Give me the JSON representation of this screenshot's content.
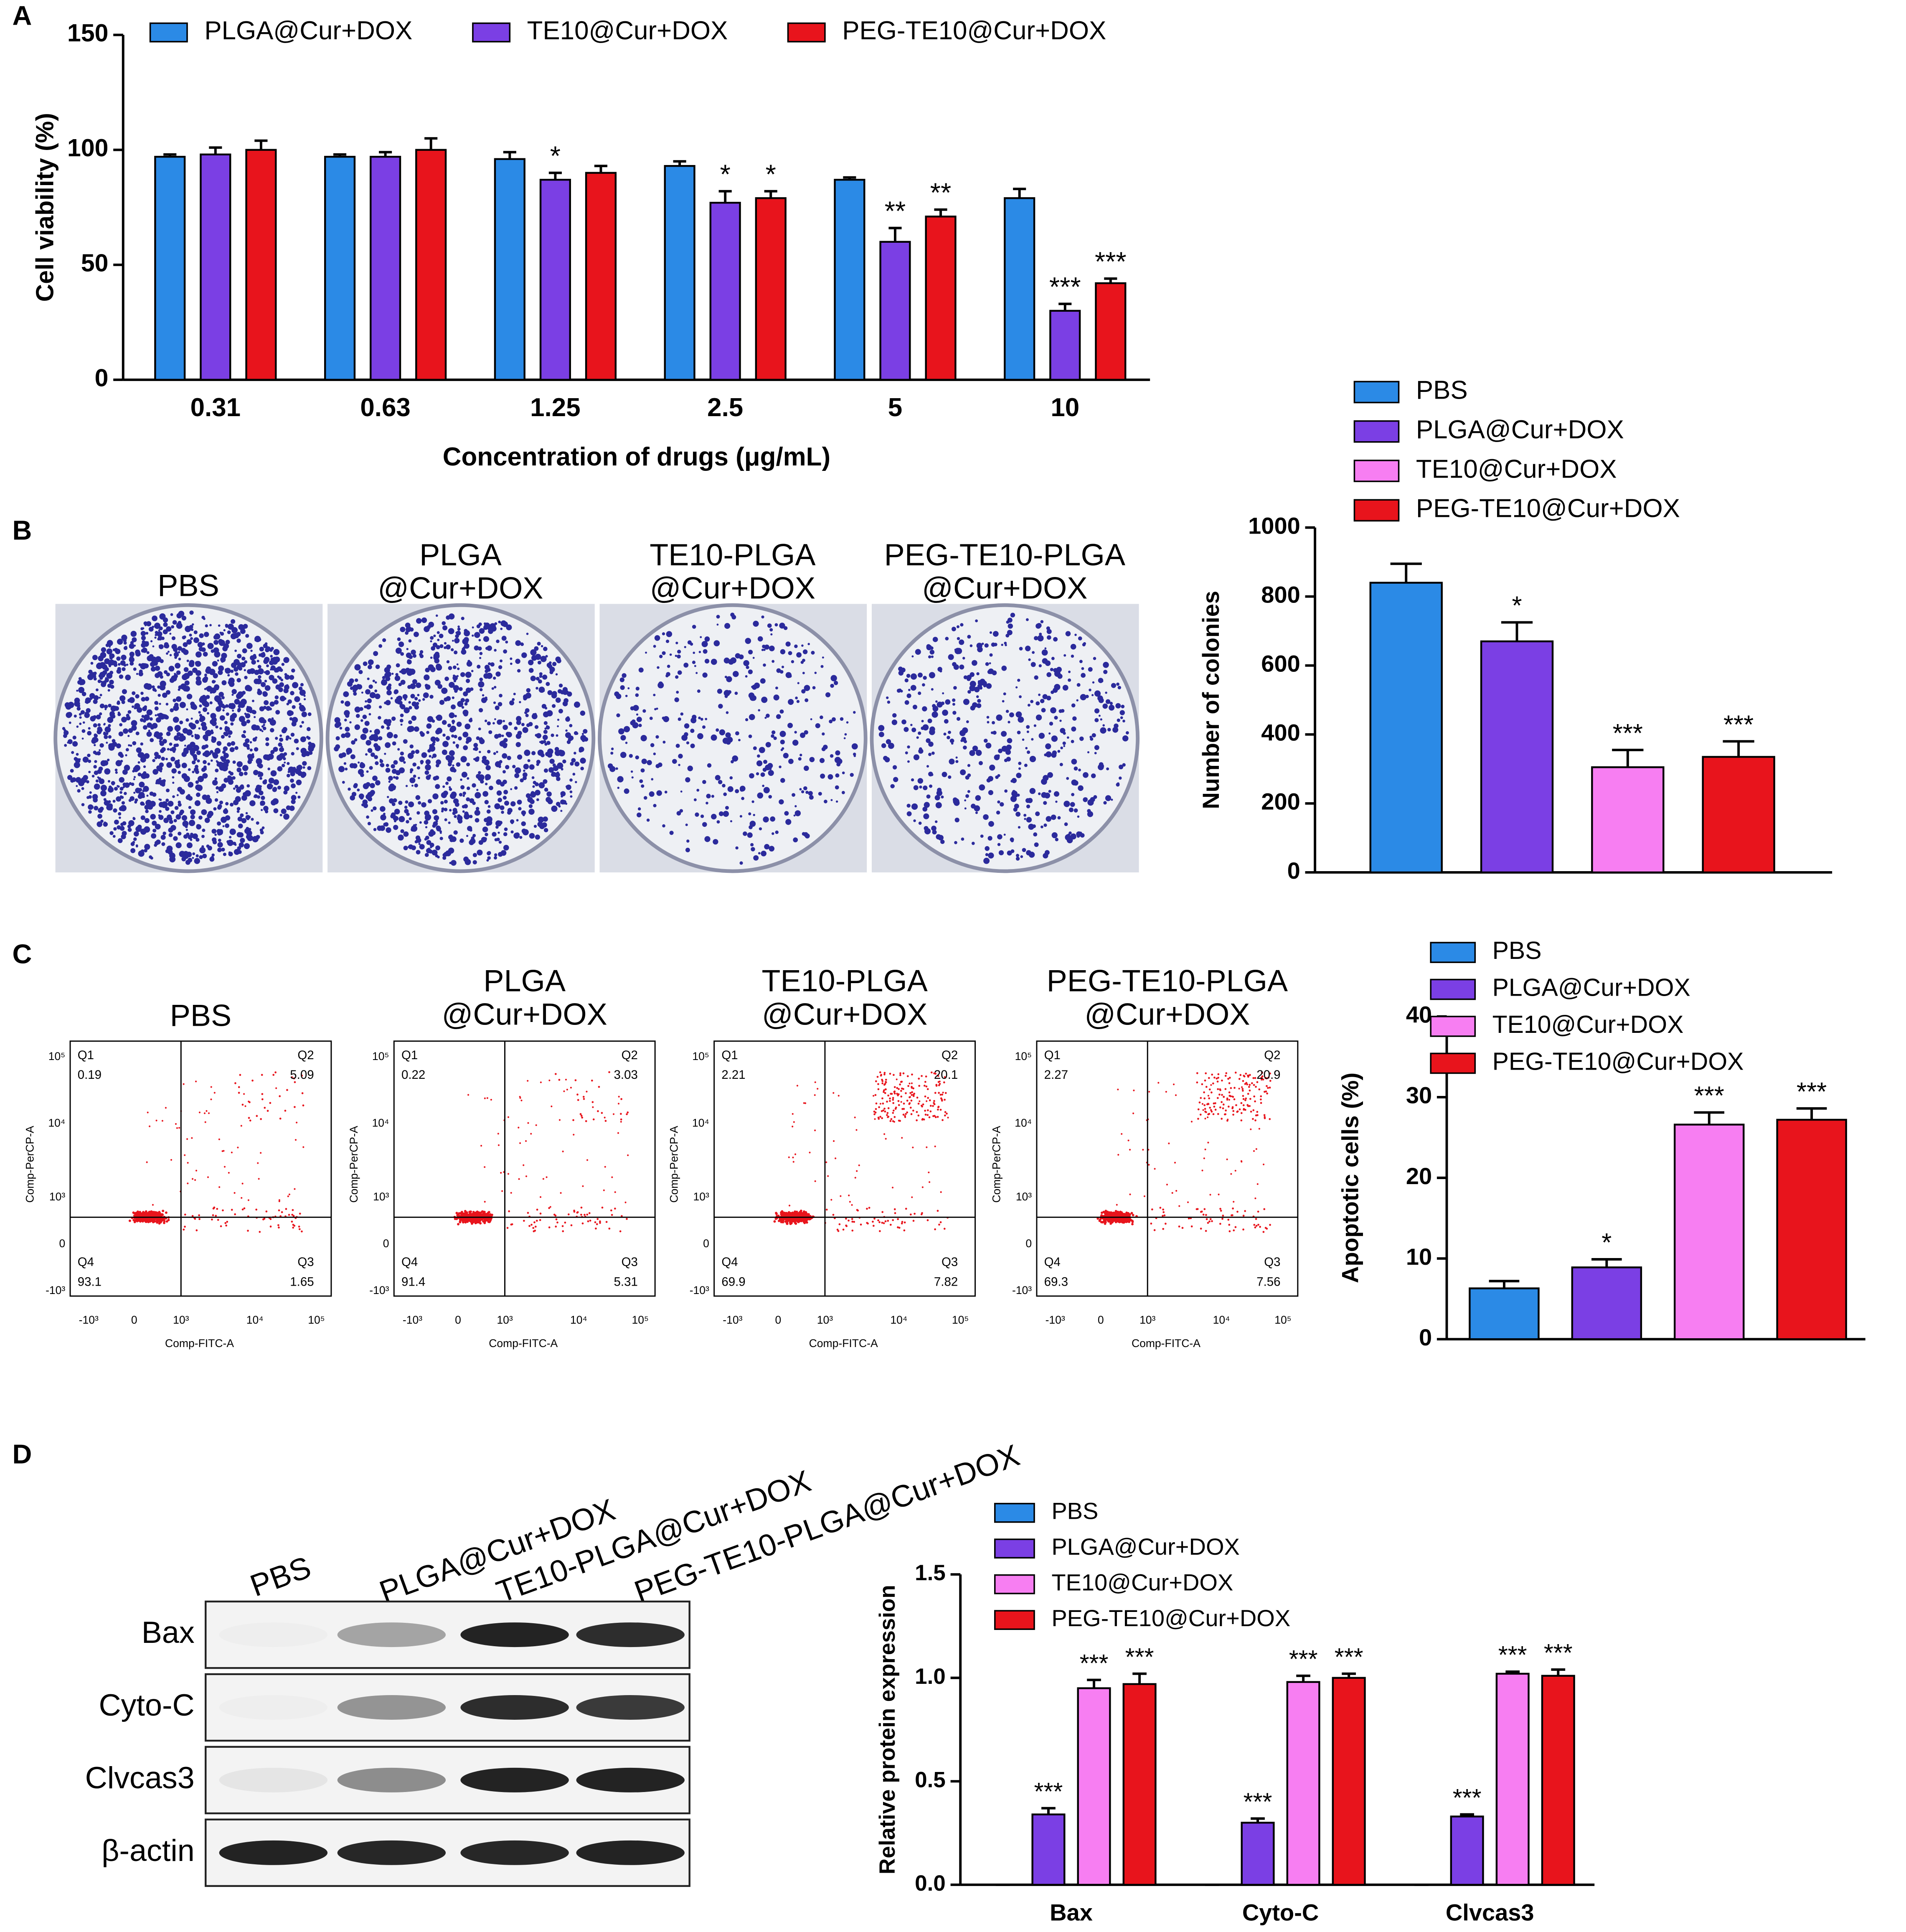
{
  "panel_labels": [
    "A",
    "B",
    "C",
    "D"
  ],
  "chart_data": [
    {
      "type": "bar",
      "xlabel": "Concentration of drugs (μg/mL)",
      "ylabel": "Cell viability (%)",
      "categories": [
        "0.31",
        "0.63",
        "1.25",
        "2.5",
        "5",
        "10"
      ],
      "ylim": [
        0,
        150
      ],
      "yticks": [
        0,
        50,
        100,
        150
      ],
      "legend": "top",
      "series": [
        {
          "name": "PLGA@Cur+DOX",
          "color": "#2b8ae6",
          "values": [
            97,
            97,
            96,
            93,
            87,
            79
          ],
          "errors": [
            1,
            1,
            3,
            2,
            1,
            4
          ],
          "significance": [
            null,
            null,
            null,
            null,
            null,
            null
          ]
        },
        {
          "name": "TE10@Cur+DOX",
          "color": "#7b3fe4",
          "values": [
            98,
            97,
            87,
            77,
            60,
            30
          ],
          "errors": [
            3,
            2,
            3,
            5,
            6,
            3
          ],
          "significance": [
            null,
            null,
            "*",
            "*",
            "**",
            "***"
          ]
        },
        {
          "name": "PEG-TE10@Cur+DOX",
          "color": "#e8141c",
          "values": [
            100,
            100,
            90,
            79,
            71,
            42
          ],
          "errors": [
            4,
            5,
            3,
            3,
            3,
            2
          ],
          "significance": [
            null,
            null,
            null,
            "*",
            "**",
            "***"
          ]
        }
      ]
    },
    {
      "type": "bar",
      "ylabel": "Number of colonies",
      "ylim": [
        0,
        1000
      ],
      "yticks": [
        0,
        200,
        400,
        600,
        800,
        1000
      ],
      "legend": "top",
      "series": [
        {
          "name": "PBS",
          "color": "#2b8ae6",
          "values": [
            840
          ],
          "errors": [
            55
          ],
          "significance": [
            null
          ]
        },
        {
          "name": "PLGA@Cur+DOX",
          "color": "#7b3fe4",
          "values": [
            670
          ],
          "errors": [
            55
          ],
          "significance": [
            "*"
          ]
        },
        {
          "name": "TE10@Cur+DOX",
          "color": "#f77ef2",
          "values": [
            305
          ],
          "errors": [
            50
          ],
          "significance": [
            "***"
          ]
        },
        {
          "name": "PEG-TE10@Cur+DOX",
          "color": "#e8141c",
          "values": [
            335
          ],
          "errors": [
            45
          ],
          "significance": [
            "***"
          ]
        }
      ]
    },
    {
      "type": "bar",
      "ylabel": "Apoptotic cells (%)",
      "ylim": [
        0,
        40
      ],
      "yticks": [
        0,
        10,
        20,
        30,
        40
      ],
      "legend": "top",
      "series": [
        {
          "name": "PBS",
          "color": "#2b8ae6",
          "values": [
            6.3
          ],
          "errors": [
            0.9
          ],
          "significance": [
            null
          ]
        },
        {
          "name": "PLGA@Cur+DOX",
          "color": "#7b3fe4",
          "values": [
            8.9
          ],
          "errors": [
            1.0
          ],
          "significance": [
            "*"
          ]
        },
        {
          "name": "TE10@Cur+DOX",
          "color": "#f77ef2",
          "values": [
            26.6
          ],
          "errors": [
            1.5
          ],
          "significance": [
            "***"
          ]
        },
        {
          "name": "PEG-TE10@Cur+DOX",
          "color": "#e8141c",
          "values": [
            27.2
          ],
          "errors": [
            1.4
          ],
          "significance": [
            "***"
          ]
        }
      ]
    },
    {
      "type": "bar",
      "ylabel": "Relative protein expression",
      "categories": [
        "Bax",
        "Cyto-C",
        "Clvcas3"
      ],
      "ylim": [
        0,
        1.5
      ],
      "yticks": [
        {
          "value": 0,
          "label": "0.0"
        },
        0.5,
        {
          "value": 1,
          "label": "1.0"
        },
        1.5
      ],
      "legend": "top",
      "series": [
        {
          "name": "PBS",
          "color": "#2b8ae6",
          "values": [
            0,
            0,
            0
          ],
          "errors": [
            0,
            0,
            0
          ],
          "significance": [
            null,
            null,
            null
          ]
        },
        {
          "name": "PLGA@Cur+DOX",
          "color": "#7b3fe4",
          "values": [
            0.34,
            0.3,
            0.33
          ],
          "errors": [
            0.03,
            0.02,
            0.01
          ],
          "significance": [
            "***",
            "***",
            "***"
          ]
        },
        {
          "name": "TE10@Cur+DOX",
          "color": "#f77ef2",
          "values": [
            0.95,
            0.98,
            1.02
          ],
          "errors": [
            0.04,
            0.03,
            0.01
          ],
          "significance": [
            "***",
            "***",
            "***"
          ]
        },
        {
          "name": "PEG-TE10@Cur+DOX",
          "color": "#e8141c",
          "values": [
            0.97,
            1.0,
            1.01
          ],
          "errors": [
            0.05,
            0.02,
            0.03
          ],
          "significance": [
            "***",
            "***",
            "***"
          ]
        }
      ]
    }
  ],
  "colony_images": [
    [
      "PBS"
    ],
    [
      "PLGA",
      "@Cur+DOX"
    ],
    [
      "TE10-PLGA",
      "@Cur+DOX"
    ],
    [
      "PEG-TE10-PLGA",
      "@Cur+DOX"
    ]
  ],
  "flow_cytometry": {
    "x_label": "Comp-FITC-A",
    "y_label": "Comp-PerCP-A",
    "ticks": [
      "-10³",
      "0",
      "10³",
      "10⁴",
      "10⁵"
    ],
    "plots": [
      {
        "title": [
          "PBS"
        ],
        "quadrants": [
          {
            "name": "Q1",
            "value": 0.19
          },
          {
            "name": "Q2",
            "value": 5.09
          },
          {
            "name": "Q3",
            "value": 1.65
          },
          {
            "name": "Q4",
            "value": 93.1
          }
        ]
      },
      {
        "title": [
          "PLGA",
          "@Cur+DOX"
        ],
        "quadrants": [
          {
            "name": "Q1",
            "value": 0.22
          },
          {
            "name": "Q2",
            "value": 3.03
          },
          {
            "name": "Q3",
            "value": 5.31
          },
          {
            "name": "Q4",
            "value": 91.4
          }
        ]
      },
      {
        "title": [
          "TE10-PLGA",
          "@Cur+DOX"
        ],
        "quadrants": [
          {
            "name": "Q1",
            "value": 2.21
          },
          {
            "name": "Q2",
            "value": 20.1
          },
          {
            "name": "Q3",
            "value": 7.82
          },
          {
            "name": "Q4",
            "value": 69.9
          }
        ]
      },
      {
        "title": [
          "PEG-TE10-PLGA",
          "@Cur+DOX"
        ],
        "quadrants": [
          {
            "name": "Q1",
            "value": 2.27
          },
          {
            "name": "Q2",
            "value": 20.9
          },
          {
            "name": "Q3",
            "value": 7.56
          },
          {
            "name": "Q4",
            "value": 69.3
          }
        ]
      }
    ]
  },
  "western_blot": {
    "lanes": [
      "PBS",
      "PLGA@Cur+DOX",
      "TE10-PLGA@Cur+DOX",
      "PEG-TE10-PLGA@Cur+DOX"
    ],
    "rows": [
      "Bax",
      "Cyto-C",
      "Clvcas3",
      "β-actin"
    ]
  }
}
